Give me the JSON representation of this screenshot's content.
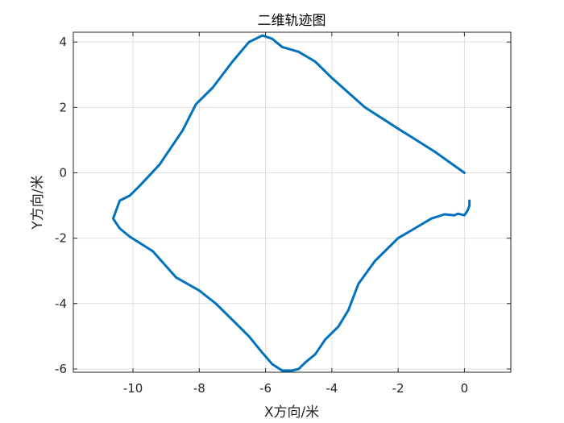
{
  "chart_data": {
    "type": "line",
    "title": "二维轨迹图",
    "xlabel": "X方向/米",
    "ylabel": "Y方向/米",
    "xlim": [
      -11.8,
      1.4
    ],
    "ylim": [
      -6.1,
      4.3
    ],
    "xticks": [
      -10,
      -8,
      -6,
      -4,
      -2,
      0
    ],
    "yticks": [
      -6,
      -4,
      -2,
      0,
      2,
      4
    ],
    "xtick_labels": [
      "-10",
      "-8",
      "-6",
      "-4",
      "-2",
      "0"
    ],
    "ytick_labels": [
      "-6",
      "-4",
      "-2",
      "0",
      "2",
      "4"
    ],
    "grid": true,
    "series": [
      {
        "name": "trajectory",
        "color": "#0072BD",
        "x": [
          0.0,
          -0.9,
          -2.0,
          -3.0,
          -4.0,
          -4.5,
          -5.0,
          -5.5,
          -5.8,
          -6.1,
          -6.5,
          -7.0,
          -7.6,
          -8.1,
          -8.4,
          -8.5,
          -8.8,
          -9.2,
          -9.8,
          -10.1,
          -10.4,
          -10.6,
          -10.4,
          -10.1,
          -9.4,
          -8.7,
          -8.0,
          -7.5,
          -7.0,
          -6.5,
          -6.1,
          -5.8,
          -5.5,
          -5.2,
          -5.0,
          -4.8,
          -4.5,
          -4.2,
          -3.8,
          -3.5,
          -3.2,
          -2.7,
          -2.0,
          -1.5,
          -1.0,
          -0.6,
          -0.3,
          -0.2,
          0.0,
          0.1,
          0.15,
          0.15
        ],
        "y": [
          0.0,
          0.65,
          1.35,
          2.0,
          2.9,
          3.4,
          3.7,
          3.85,
          4.1,
          4.2,
          4.0,
          3.4,
          2.6,
          2.1,
          1.5,
          1.3,
          0.85,
          0.25,
          -0.4,
          -0.7,
          -0.85,
          -1.4,
          -1.7,
          -1.95,
          -2.4,
          -3.2,
          -3.6,
          -4.0,
          -4.5,
          -5.0,
          -5.5,
          -5.85,
          -6.05,
          -6.05,
          -6.0,
          -5.8,
          -5.55,
          -5.1,
          -4.7,
          -4.2,
          -3.4,
          -2.7,
          -2.0,
          -1.7,
          -1.4,
          -1.27,
          -1.3,
          -1.25,
          -1.3,
          -1.15,
          -1.0,
          -0.85
        ]
      }
    ]
  }
}
